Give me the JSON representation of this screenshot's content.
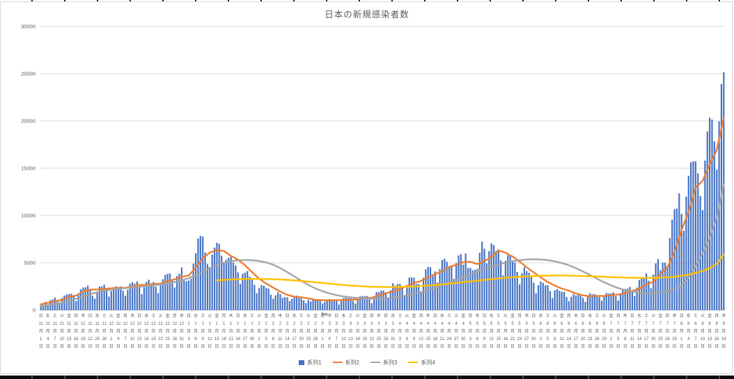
{
  "chart_data": {
    "type": "bar",
    "subtype": "combo: daily bars + 3 smoothed line series",
    "title": "日本の新規感染者数",
    "xlabel": "ha",
    "ylabel": "",
    "ylim": [
      0,
      30000
    ],
    "yticks": [
      0,
      5000,
      10000,
      15000,
      20000,
      25000,
      30000
    ],
    "grid": true,
    "legend_position": "bottom",
    "xticks": {
      "every_n_days": 3,
      "month_suffix": "月",
      "day_suffix": "日",
      "weekday": [
        "日",
        "水",
        "土",
        "火",
        "金",
        "月",
        "木",
        "日",
        "水",
        "土",
        "火",
        "金",
        "月",
        "木",
        "日",
        "水",
        "土",
        "火",
        "金",
        "月",
        "木",
        "日",
        "水",
        "土",
        "火",
        "金",
        "月",
        "木",
        "日",
        "水",
        "土",
        "火",
        "金",
        "月",
        "木",
        "日",
        "水",
        "土",
        "火",
        "金",
        "月",
        "木",
        "日",
        "水",
        "土",
        "火",
        "金",
        "月",
        "木",
        "日",
        "水",
        "土",
        "火",
        "金",
        "月",
        "木",
        "日",
        "水",
        "土",
        "火",
        "金",
        "月",
        "木",
        "日",
        "水",
        "土",
        "火",
        "金",
        "月",
        "木",
        "日",
        "水",
        "土",
        "火",
        "金",
        "月",
        "木",
        "日",
        "水",
        "土",
        "火",
        "金",
        "月",
        "木",
        "日",
        "水",
        "土",
        "火",
        "金",
        "月",
        "木",
        "日",
        "水",
        "土",
        "火",
        "金",
        "月",
        "木"
      ],
      "month": [
        11,
        11,
        11,
        11,
        11,
        11,
        11,
        11,
        11,
        11,
        12,
        12,
        12,
        12,
        12,
        12,
        12,
        12,
        12,
        12,
        12,
        1,
        1,
        1,
        1,
        1,
        1,
        1,
        1,
        1,
        1,
        2,
        2,
        2,
        2,
        2,
        2,
        2,
        2,
        2,
        3,
        3,
        3,
        3,
        3,
        3,
        3,
        3,
        3,
        3,
        3,
        4,
        4,
        4,
        4,
        4,
        4,
        4,
        4,
        4,
        4,
        5,
        5,
        5,
        5,
        5,
        5,
        5,
        5,
        5,
        5,
        6,
        6,
        6,
        6,
        6,
        6,
        6,
        6,
        6,
        6,
        7,
        7,
        7,
        7,
        7,
        7,
        7,
        7,
        7,
        7,
        8,
        8,
        8,
        8,
        8,
        8,
        8
      ],
      "day": [
        1,
        4,
        7,
        10,
        13,
        16,
        19,
        22,
        25,
        28,
        1,
        4,
        7,
        10,
        13,
        16,
        19,
        22,
        25,
        28,
        31,
        3,
        6,
        9,
        12,
        15,
        18,
        21,
        24,
        27,
        30,
        2,
        5,
        8,
        11,
        14,
        17,
        20,
        23,
        26,
        1,
        4,
        7,
        10,
        13,
        16,
        19,
        22,
        25,
        28,
        31,
        3,
        6,
        9,
        12,
        15,
        18,
        21,
        24,
        27,
        30,
        3,
        6,
        9,
        12,
        15,
        18,
        21,
        24,
        27,
        30,
        2,
        5,
        8,
        11,
        14,
        17,
        20,
        23,
        26,
        29,
        2,
        5,
        8,
        11,
        14,
        17,
        20,
        23,
        26,
        29,
        1,
        4,
        7,
        10,
        13,
        16,
        19
      ]
    },
    "series": [
      {
        "name": "系列1",
        "type": "bar",
        "color": "#4472C4",
        "cadence_days": 1,
        "values": [
          614,
          487,
          867,
          620,
          1050,
          1141,
          1324,
          950,
          780,
          1284,
          1543,
          1661,
          1704,
          1737,
          1441,
          959,
          1694,
          2201,
          2386,
          2418,
          2592,
          2168,
          1520,
          1229,
          1930,
          2504,
          2527,
          2684,
          2066,
          1438,
          2030,
          2430,
          2518,
          2442,
          2508,
          2058,
          1515,
          2152,
          2811,
          2968,
          2790,
          3041,
          2389,
          1680,
          2410,
          2987,
          3211,
          2829,
          2983,
          2501,
          1806,
          2688,
          3271,
          3742,
          3832,
          3881,
          3127,
          2404,
          3604,
          3852,
          4520,
          3246,
          3044,
          3127,
          3325,
          4915,
          6004,
          7570,
          7844,
          7790,
          6096,
          4875,
          4527,
          5870,
          6609,
          7133,
          7014,
          5759,
          4925,
          5320,
          5549,
          5653,
          5045,
          4717,
          3988,
          2764,
          3853,
          3971,
          4133,
          3534,
          3344,
          2673,
          1792,
          2324,
          2632,
          2576,
          2371,
          2279,
          1631,
          1216,
          1570,
          1887,
          1693,
          1304,
          1362,
          1364,
          965,
          1194,
          1448,
          1538,
          1301,
          1234,
          1032,
          740,
          1083,
          922,
          1076,
          1083,
          1148,
          999,
          697,
          888,
          1121,
          1173,
          1148,
          1066,
          1121,
          599,
          974,
          1277,
          1316,
          1271,
          1320,
          989,
          695,
          1133,
          1448,
          1500,
          1463,
          1500,
          1119,
          733,
          1504,
          1917,
          1918,
          2070,
          2087,
          1785,
          1351,
          2087,
          2843,
          2597,
          2770,
          2778,
          2472,
          1571,
          2654,
          3451,
          3448,
          3440,
          2777,
          2779,
          1904,
          3420,
          4309,
          4576,
          4532,
          3605,
          4093,
          2908,
          4342,
          5291,
          5452,
          5113,
          4605,
          4601,
          3318,
          4965,
          5792,
          5918,
          4808,
          5986,
          4470,
          4462,
          4199,
          4267,
          4365,
          6058,
          7244,
          6493,
          4936,
          6243,
          7057,
          6877,
          6268,
          6421,
          5261,
          3680,
          5229,
          5813,
          5720,
          5250,
          5040,
          4046,
          2729,
          3899,
          4536,
          4141,
          3953,
          3582,
          2900,
          1791,
          2644,
          3035,
          2890,
          2632,
          2644,
          2021,
          1278,
          2095,
          2242,
          2046,
          1937,
          1937,
          1387,
          937,
          1420,
          1709,
          1554,
          1605,
          1521,
          1307,
          868,
          1435,
          1779,
          1661,
          1704,
          1535,
          1387,
          1009,
          1576,
          1817,
          1754,
          1777,
          1879,
          1485,
          1030,
          1674,
          2180,
          2246,
          2276,
          2458,
          2020,
          1506,
          2386,
          3194,
          3418,
          3423,
          3886,
          3103,
          2329,
          3758,
          4943,
          5397,
          4225,
          5020,
          5020,
          4692,
          7629,
          9576,
          10699,
          10743,
          12342,
          10177,
          8393,
          12017,
          14207,
          15645,
          15753,
          15753,
          14472,
          12073,
          10574,
          15812,
          18889,
          20365,
          20151,
          17832,
          14854,
          19955,
          23917,
          25156
        ]
      },
      {
        "name": "系列2",
        "type": "line",
        "color": "#ED7D31",
        "cadence_days": 3,
        "values": [
          620,
          780,
          960,
          1090,
          1420,
          1540,
          1980,
          2170,
          2190,
          2260,
          2310,
          2360,
          2370,
          2500,
          2680,
          2690,
          2780,
          2810,
          3060,
          3260,
          3510,
          3680,
          4480,
          5510,
          6080,
          6360,
          6260,
          5740,
          5340,
          4750,
          4010,
          3330,
          2810,
          2380,
          1960,
          1610,
          1430,
          1360,
          1240,
          1090,
          1050,
          1030,
          1060,
          1070,
          1110,
          1130,
          1290,
          1310,
          1580,
          1790,
          1990,
          2280,
          2530,
          2880,
          3080,
          3460,
          3820,
          4090,
          4580,
          4780,
          5070,
          5120,
          4870,
          5190,
          5610,
          6310,
          6080,
          5670,
          5140,
          4530,
          3990,
          3470,
          2970,
          2600,
          2280,
          2060,
          1770,
          1560,
          1480,
          1500,
          1510,
          1570,
          1650,
          1810,
          2040,
          2260,
          2700,
          3010,
          3840,
          4490,
          6180,
          8460,
          10420,
          12960,
          13680,
          15420,
          16930,
          20320
        ]
      },
      {
        "name": "系列3",
        "type": "line",
        "color": "#A5A5A5",
        "cadence_days": 3,
        "values": [
          450,
          520,
          640,
          800,
          980,
          1200,
          1450,
          1700,
          1900,
          2080,
          2180,
          2260,
          2330,
          2400,
          2480,
          2560,
          2640,
          2720,
          2830,
          2960,
          3150,
          3380,
          3700,
          4090,
          4460,
          4780,
          5020,
          5180,
          5270,
          5300,
          5280,
          5200,
          5050,
          4800,
          4450,
          4030,
          3570,
          3100,
          2670,
          2300,
          2000,
          1770,
          1590,
          1450,
          1350,
          1280,
          1230,
          1210,
          1220,
          1260,
          1330,
          1430,
          1560,
          1720,
          1910,
          2130,
          2370,
          2630,
          2910,
          3200,
          3500,
          3800,
          4090,
          4360,
          4610,
          4830,
          5020,
          5170,
          5280,
          5350,
          5380,
          5360,
          5290,
          5160,
          4980,
          4740,
          4440,
          4090,
          3710,
          3320,
          2950,
          2620,
          2340,
          2110,
          1940,
          1830,
          1780,
          1790,
          1860,
          2010,
          2250,
          2610,
          3440,
          4600,
          6000,
          7600,
          9800,
          13300
        ]
      },
      {
        "name": "系列4",
        "type": "line",
        "color": "#FFC000",
        "cadence_days": 3,
        "values": [
          null,
          null,
          null,
          null,
          null,
          null,
          null,
          null,
          null,
          null,
          null,
          null,
          null,
          null,
          null,
          null,
          null,
          null,
          null,
          null,
          null,
          null,
          null,
          null,
          null,
          3150,
          3200,
          3240,
          3270,
          3290,
          3300,
          3300,
          3290,
          3270,
          3240,
          3200,
          3150,
          3090,
          3020,
          2950,
          2880,
          2800,
          2730,
          2660,
          2600,
          2550,
          2510,
          2480,
          2460,
          2450,
          2450,
          2460,
          2480,
          2510,
          2550,
          2600,
          2660,
          2730,
          2800,
          2880,
          2960,
          3040,
          3120,
          3200,
          3280,
          3350,
          3420,
          3480,
          3530,
          3570,
          3600,
          3630,
          3650,
          3660,
          3660,
          3650,
          3630,
          3610,
          3580,
          3550,
          3520,
          3490,
          3460,
          3440,
          3420,
          3410,
          3410,
          3420,
          3440,
          3480,
          3540,
          3630,
          3760,
          3930,
          4150,
          4430,
          4900,
          5900
        ]
      }
    ]
  }
}
